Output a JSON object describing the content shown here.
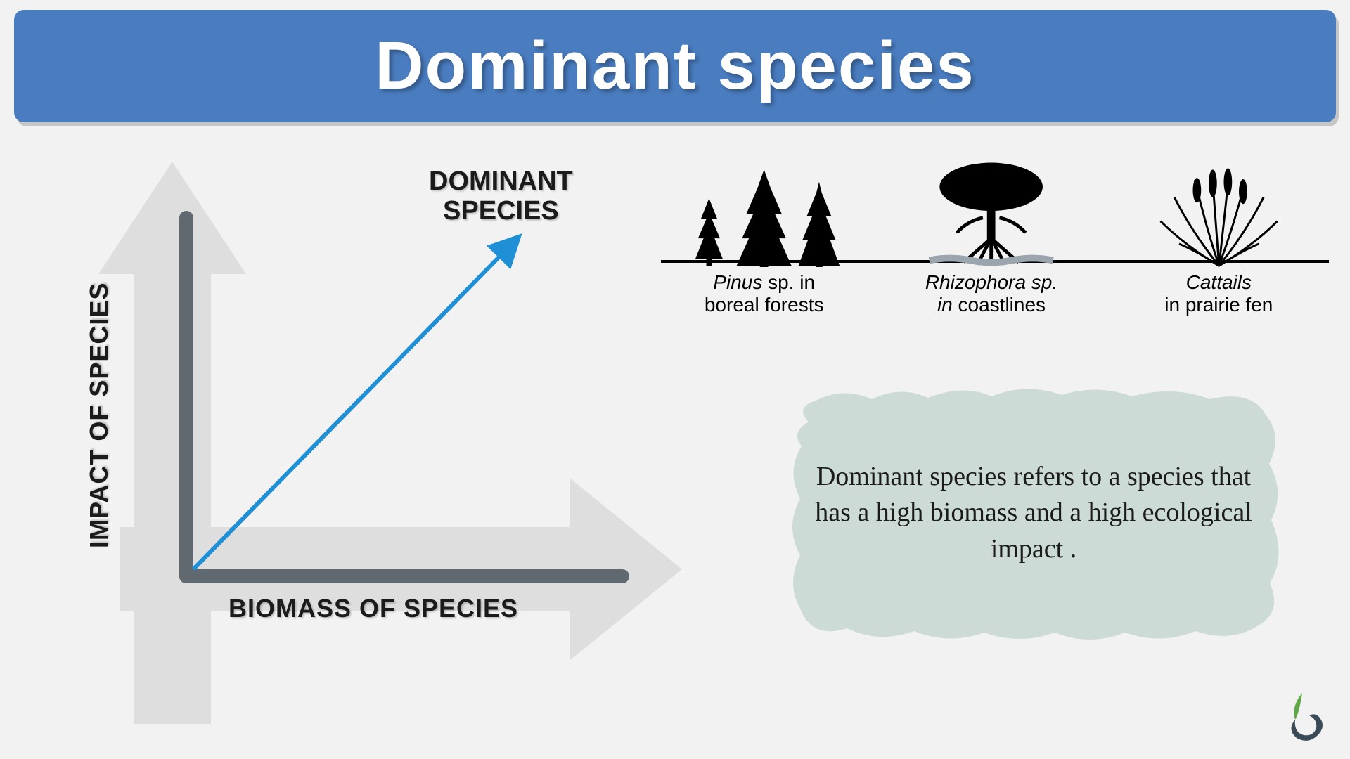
{
  "header": {
    "title": "Dominant species",
    "background_color": "#4a7dc0",
    "title_color": "#ffffff",
    "title_fontsize": 96
  },
  "chart": {
    "type": "line",
    "y_label": "IMPACT OF SPECIES",
    "x_label": "BIOMASS OF SPECIES",
    "line_label": "DOMINANT\nSPECIES",
    "label_color": "#1b1b1b",
    "label_fontsize": 36,
    "axis_color": "#606870",
    "arrow_bg_color": "#dedede",
    "line_color": "#1f8fd6",
    "line_width": 6,
    "line_points": [
      [
        0,
        510
      ],
      [
        455,
        45
      ]
    ],
    "arrowhead": true
  },
  "examples": [
    {
      "icon_name": "pine-trees-icon",
      "caption_italic": "Pinus",
      "caption_rest": " sp. in",
      "caption_line2": "boreal forests"
    },
    {
      "icon_name": "mangrove-icon",
      "caption_italic": "Rhizophora sp.",
      "caption_rest": "",
      "caption_line2_italic": "in",
      "caption_line2_rest": " coastlines"
    },
    {
      "icon_name": "cattails-icon",
      "caption_italic": "Cattails",
      "caption_rest": "",
      "caption_line2": "in prairie fen"
    }
  ],
  "definition": {
    "text": "Dominant species refers to a species that has a high biomass and a high ecological impact .",
    "background_color": "#cddbd6",
    "text_color": "#1b1b1b",
    "fontsize": 38
  },
  "logo": {
    "leaf_color": "#5fa845",
    "swirl_color": "#3b4a57"
  },
  "page_background": "#f2f2f2"
}
